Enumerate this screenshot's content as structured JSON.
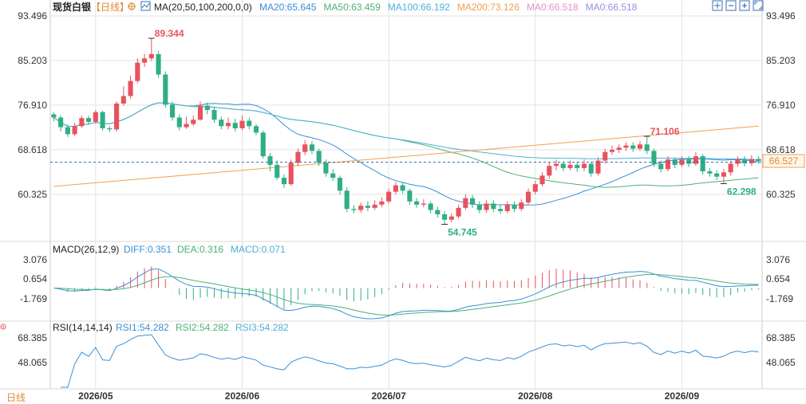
{
  "header": {
    "symbol": "现货白银",
    "period": "【日线】",
    "ma_label": "MA(20,50,100,200,0,0)",
    "ma_values": [
      {
        "text": "MA20:65.645",
        "color": "#3a8fd6"
      },
      {
        "text": "MA50:63.459",
        "color": "#4bb07a"
      },
      {
        "text": "MA100:66.192",
        "color": "#4fb0d8"
      },
      {
        "text": "MA200:73.126",
        "color": "#f0a050"
      },
      {
        "text": "MA0:66.518",
        "color": "#e88fc6"
      },
      {
        "text": "MA0:66.518",
        "color": "#9a8fe0"
      }
    ]
  },
  "price_axis": {
    "ticks": [
      "93.496",
      "85.203",
      "76.910",
      "68.618",
      "60.325"
    ],
    "tick_values": [
      93.496,
      85.203,
      76.91,
      68.618,
      60.325
    ],
    "last_price": "66.527",
    "ref_line_value": 66.3
  },
  "annotations": {
    "high1": {
      "text": "89.344",
      "value": 89.344
    },
    "high2": {
      "text": "71.106",
      "value": 71.106
    },
    "low1": {
      "text": "54.745",
      "value": 54.745
    },
    "low2": {
      "text": "62.298",
      "value": 62.298
    }
  },
  "macd": {
    "label": "MACD(26,12,9)",
    "diff": "DIFF:0.351",
    "dea": "DEA:0.316",
    "macd": "MACD:0.071",
    "ticks": [
      "3.076",
      "0.654",
      "-1.769"
    ],
    "tick_values": [
      3.076,
      0.654,
      -1.769
    ]
  },
  "rsi": {
    "label": "RSI(14,14,14)",
    "rsi1": "RSI1:54.282",
    "rsi2": "RSI2:54.282",
    "rsi3": "RSI3:54.282",
    "ticks": [
      "68.385",
      "48.065"
    ],
    "tick_values": [
      68.385,
      48.065
    ]
  },
  "x_axis": {
    "labels": [
      "2026/05",
      "2026/06",
      "2026/07",
      "2026/08",
      "2026/09"
    ],
    "label_index": [
      6,
      27,
      48,
      69,
      90
    ]
  },
  "footer": {
    "period_button": "日线"
  },
  "colors": {
    "up": "#e8525e",
    "down": "#2fae84",
    "grid": "#e3e3e3"
  },
  "chart_data": {
    "type": "candlestick",
    "title": "现货白银",
    "candles": [
      [
        75.2,
        74.6,
        75.6,
        73.9
      ],
      [
        74.6,
        72.8,
        75.0,
        72.0
      ],
      [
        72.8,
        71.5,
        73.3,
        71.0
      ],
      [
        71.5,
        73.0,
        73.6,
        71.2
      ],
      [
        73.0,
        74.5,
        75.0,
        72.7
      ],
      [
        74.5,
        73.8,
        74.9,
        73.3
      ],
      [
        73.8,
        75.6,
        76.0,
        73.5
      ],
      [
        75.6,
        72.6,
        75.9,
        72.2
      ],
      [
        72.6,
        72.4,
        73.0,
        71.9
      ],
      [
        72.4,
        77.2,
        77.6,
        72.0
      ],
      [
        77.2,
        78.6,
        80.4,
        76.8
      ],
      [
        78.6,
        81.4,
        82.4,
        78.1
      ],
      [
        81.4,
        84.8,
        85.6,
        81.0
      ],
      [
        84.8,
        85.6,
        86.4,
        84.0
      ],
      [
        85.6,
        86.4,
        89.344,
        85.1
      ],
      [
        86.4,
        82.6,
        87.0,
        82.0
      ],
      [
        82.6,
        77.0,
        83.2,
        76.4
      ],
      [
        77.0,
        74.6,
        77.6,
        74.0
      ],
      [
        74.6,
        72.8,
        75.2,
        72.2
      ],
      [
        72.8,
        73.4,
        74.8,
        72.5
      ],
      [
        73.4,
        74.2,
        75.0,
        73.0
      ],
      [
        74.2,
        76.8,
        77.6,
        74.0
      ],
      [
        76.8,
        76.0,
        77.4,
        75.2
      ],
      [
        76.0,
        74.2,
        76.6,
        73.6
      ],
      [
        74.2,
        73.0,
        74.8,
        72.4
      ],
      [
        73.0,
        73.6,
        74.6,
        72.4
      ],
      [
        73.6,
        72.6,
        74.4,
        72.0
      ],
      [
        72.6,
        74.0,
        75.0,
        72.2
      ],
      [
        74.0,
        73.0,
        74.6,
        72.4
      ],
      [
        73.0,
        71.8,
        73.4,
        71.3
      ],
      [
        71.8,
        67.4,
        72.2,
        67.0
      ],
      [
        67.4,
        65.8,
        68.0,
        64.6
      ],
      [
        65.8,
        63.4,
        66.6,
        63.0
      ],
      [
        63.4,
        62.2,
        64.0,
        61.5
      ],
      [
        62.2,
        66.2,
        66.8,
        61.9
      ],
      [
        66.2,
        68.2,
        68.8,
        65.6
      ],
      [
        68.2,
        69.6,
        70.4,
        67.6
      ],
      [
        69.6,
        68.4,
        70.2,
        67.8
      ],
      [
        68.4,
        66.2,
        68.8,
        65.6
      ],
      [
        66.2,
        64.2,
        66.8,
        63.6
      ],
      [
        64.2,
        63.4,
        65.0,
        62.8
      ],
      [
        63.4,
        61.0,
        63.8,
        60.3
      ],
      [
        61.0,
        57.6,
        61.6,
        57.0
      ],
      [
        57.6,
        57.4,
        58.3,
        56.8
      ],
      [
        57.4,
        58.2,
        58.8,
        56.9
      ],
      [
        58.2,
        57.8,
        59.0,
        57.2
      ],
      [
        57.8,
        58.4,
        59.2,
        57.4
      ],
      [
        58.4,
        59.0,
        59.8,
        57.9
      ],
      [
        59.0,
        60.8,
        61.4,
        58.6
      ],
      [
        60.8,
        62.0,
        62.6,
        60.3
      ],
      [
        62.0,
        61.0,
        62.6,
        60.4
      ],
      [
        61.0,
        59.0,
        61.4,
        58.4
      ],
      [
        59.0,
        58.4,
        59.6,
        57.8
      ],
      [
        58.4,
        58.6,
        59.4,
        57.9
      ],
      [
        58.6,
        57.4,
        59.0,
        56.8
      ],
      [
        57.4,
        56.6,
        58.0,
        56.0
      ],
      [
        56.6,
        55.6,
        57.2,
        54.745
      ],
      [
        55.6,
        56.2,
        56.8,
        55.1
      ],
      [
        56.2,
        57.8,
        58.4,
        55.8
      ],
      [
        57.8,
        59.6,
        60.3,
        57.4
      ],
      [
        59.6,
        58.4,
        60.2,
        57.8
      ],
      [
        58.4,
        57.4,
        59.0,
        56.8
      ],
      [
        57.4,
        58.6,
        59.2,
        56.9
      ],
      [
        58.6,
        57.6,
        59.2,
        57.0
      ],
      [
        57.6,
        57.2,
        58.4,
        56.7
      ],
      [
        57.2,
        58.4,
        59.0,
        56.8
      ],
      [
        58.4,
        57.6,
        59.0,
        57.0
      ],
      [
        57.6,
        58.8,
        59.4,
        57.2
      ],
      [
        58.8,
        60.8,
        61.4,
        58.4
      ],
      [
        60.8,
        62.2,
        62.8,
        60.3
      ],
      [
        62.2,
        63.8,
        64.4,
        61.8
      ],
      [
        63.8,
        65.6,
        66.4,
        63.2
      ],
      [
        65.6,
        66.0,
        66.8,
        64.8
      ],
      [
        66.0,
        65.2,
        66.4,
        64.6
      ],
      [
        65.2,
        65.8,
        66.6,
        64.8
      ],
      [
        65.8,
        65.2,
        66.4,
        64.5
      ],
      [
        65.2,
        66.0,
        66.8,
        64.6
      ],
      [
        66.0,
        64.2,
        66.4,
        63.6
      ],
      [
        64.2,
        66.6,
        67.2,
        63.8
      ],
      [
        66.6,
        68.2,
        68.8,
        66.0
      ],
      [
        68.2,
        68.6,
        69.4,
        67.6
      ],
      [
        68.6,
        69.0,
        69.6,
        68.0
      ],
      [
        69.0,
        69.4,
        70.0,
        68.4
      ],
      [
        69.4,
        68.8,
        70.0,
        68.2
      ],
      [
        68.8,
        69.6,
        70.2,
        68.4
      ],
      [
        69.6,
        68.4,
        71.106,
        67.8
      ],
      [
        68.4,
        66.0,
        68.8,
        65.4
      ],
      [
        66.0,
        65.0,
        66.6,
        64.4
      ],
      [
        65.0,
        66.8,
        67.4,
        64.6
      ],
      [
        66.8,
        65.8,
        67.2,
        65.2
      ],
      [
        65.8,
        66.8,
        67.4,
        65.4
      ],
      [
        66.8,
        66.0,
        67.4,
        65.4
      ],
      [
        66.0,
        67.4,
        68.2,
        65.6
      ],
      [
        67.4,
        64.6,
        67.8,
        64.0
      ],
      [
        64.6,
        64.2,
        65.2,
        63.6
      ],
      [
        64.2,
        63.6,
        64.8,
        63.0
      ],
      [
        63.6,
        64.4,
        65.0,
        62.298
      ],
      [
        64.4,
        66.0,
        66.6,
        63.8
      ],
      [
        66.0,
        66.8,
        67.4,
        65.4
      ],
      [
        66.8,
        66.1,
        67.4,
        65.5
      ],
      [
        66.1,
        66.9,
        67.6,
        65.6
      ],
      [
        66.9,
        66.527,
        67.4,
        66.0
      ]
    ],
    "ma_series_style": "MA20 blue, MA50 green, MA100 light blue, MA200 orange",
    "xlabel": "",
    "ylabel": "",
    "ylim": [
      52.0,
      93.496
    ]
  }
}
